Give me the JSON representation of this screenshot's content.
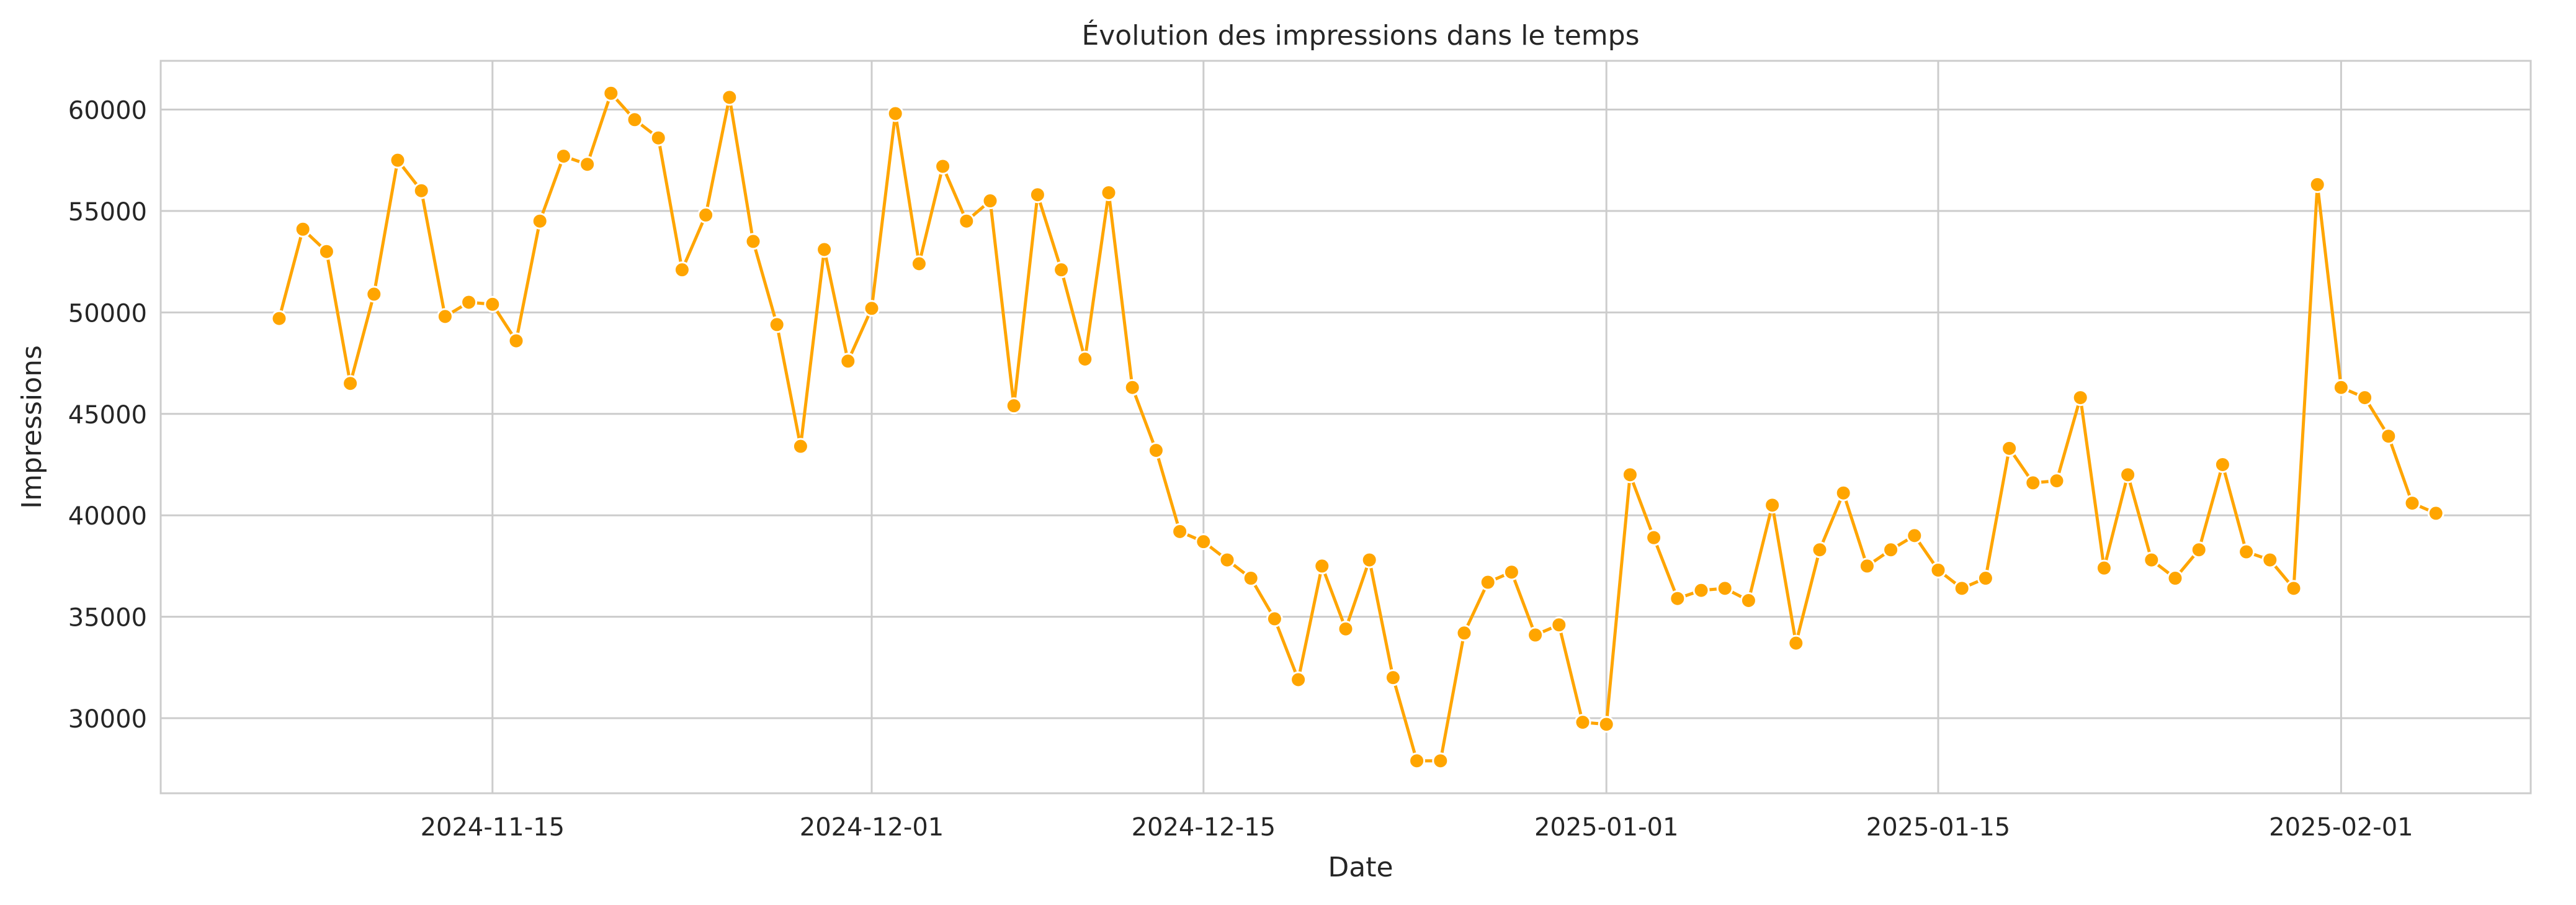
{
  "chart_data": {
    "type": "line",
    "title": "Évolution des impressions dans le temps",
    "xlabel": "Date",
    "ylabel": "Impressions",
    "grid": true,
    "colors": {
      "line": "#FFA500",
      "grid": "#cccccc",
      "axes": "#cccccc",
      "text": "#262626"
    },
    "xlim": [
      "2024-11-01",
      "2025-02-09"
    ],
    "ylim": [
      26300,
      62400
    ],
    "x_ticks": [
      "2024-11-15",
      "2024-12-01",
      "2024-12-15",
      "2025-01-01",
      "2025-01-15",
      "2025-02-01"
    ],
    "y_ticks": [
      30000,
      35000,
      40000,
      45000,
      50000,
      55000,
      60000
    ],
    "series": [
      {
        "marker": "o",
        "x": [
          "2024-11-06",
          "2024-11-07",
          "2024-11-08",
          "2024-11-09",
          "2024-11-10",
          "2024-11-11",
          "2024-11-12",
          "2024-11-13",
          "2024-11-14",
          "2024-11-15",
          "2024-11-16",
          "2024-11-17",
          "2024-11-18",
          "2024-11-19",
          "2024-11-20",
          "2024-11-21",
          "2024-11-22",
          "2024-11-23",
          "2024-11-24",
          "2024-11-25",
          "2024-11-26",
          "2024-11-27",
          "2024-11-28",
          "2024-11-29",
          "2024-11-30",
          "2024-12-01",
          "2024-12-02",
          "2024-12-03",
          "2024-12-04",
          "2024-12-05",
          "2024-12-06",
          "2024-12-07",
          "2024-12-08",
          "2024-12-09",
          "2024-12-10",
          "2024-12-11",
          "2024-12-12",
          "2024-12-13",
          "2024-12-14",
          "2024-12-15",
          "2024-12-16",
          "2024-12-17",
          "2024-12-18",
          "2024-12-19",
          "2024-12-20",
          "2024-12-21",
          "2024-12-22",
          "2024-12-23",
          "2024-12-24",
          "2024-12-25",
          "2024-12-26",
          "2024-12-27",
          "2024-12-28",
          "2024-12-29",
          "2024-12-30",
          "2024-12-31",
          "2025-01-01",
          "2025-01-02",
          "2025-01-03",
          "2025-01-04",
          "2025-01-05",
          "2025-01-06",
          "2025-01-07",
          "2025-01-08",
          "2025-01-09",
          "2025-01-10",
          "2025-01-11",
          "2025-01-12",
          "2025-01-13",
          "2025-01-14",
          "2025-01-15",
          "2025-01-16",
          "2025-01-17",
          "2025-01-18",
          "2025-01-19",
          "2025-01-20",
          "2025-01-21",
          "2025-01-22",
          "2025-01-23",
          "2025-01-24",
          "2025-01-25",
          "2025-01-26",
          "2025-01-27",
          "2025-01-28",
          "2025-01-29",
          "2025-01-30",
          "2025-01-31",
          "2025-02-01",
          "2025-02-02",
          "2025-02-03",
          "2025-02-04",
          "2025-02-05"
        ],
        "y": [
          49700,
          54100,
          53000,
          46500,
          50900,
          57500,
          56000,
          49800,
          50500,
          50400,
          48600,
          54500,
          57700,
          57300,
          60800,
          59500,
          58600,
          52100,
          54800,
          60600,
          53500,
          49400,
          43400,
          53100,
          47600,
          50200,
          59800,
          52400,
          57200,
          54500,
          55500,
          45400,
          55800,
          52100,
          47700,
          55900,
          46300,
          43200,
          39200,
          38700,
          37800,
          36900,
          34900,
          31900,
          37500,
          34400,
          37800,
          32000,
          27900,
          27900,
          34200,
          36700,
          37200,
          34100,
          34600,
          29800,
          29700,
          42000,
          38900,
          35900,
          36300,
          36400,
          35800,
          40500,
          33700,
          38300,
          41100,
          37500,
          38300,
          39000,
          37300,
          36400,
          36900,
          43300,
          41600,
          41700,
          45800,
          37400,
          42000,
          37800,
          36900,
          38300,
          42500,
          38200,
          37800,
          36400,
          56300,
          46300,
          45800,
          43900,
          40600,
          40100
        ]
      }
    ]
  }
}
